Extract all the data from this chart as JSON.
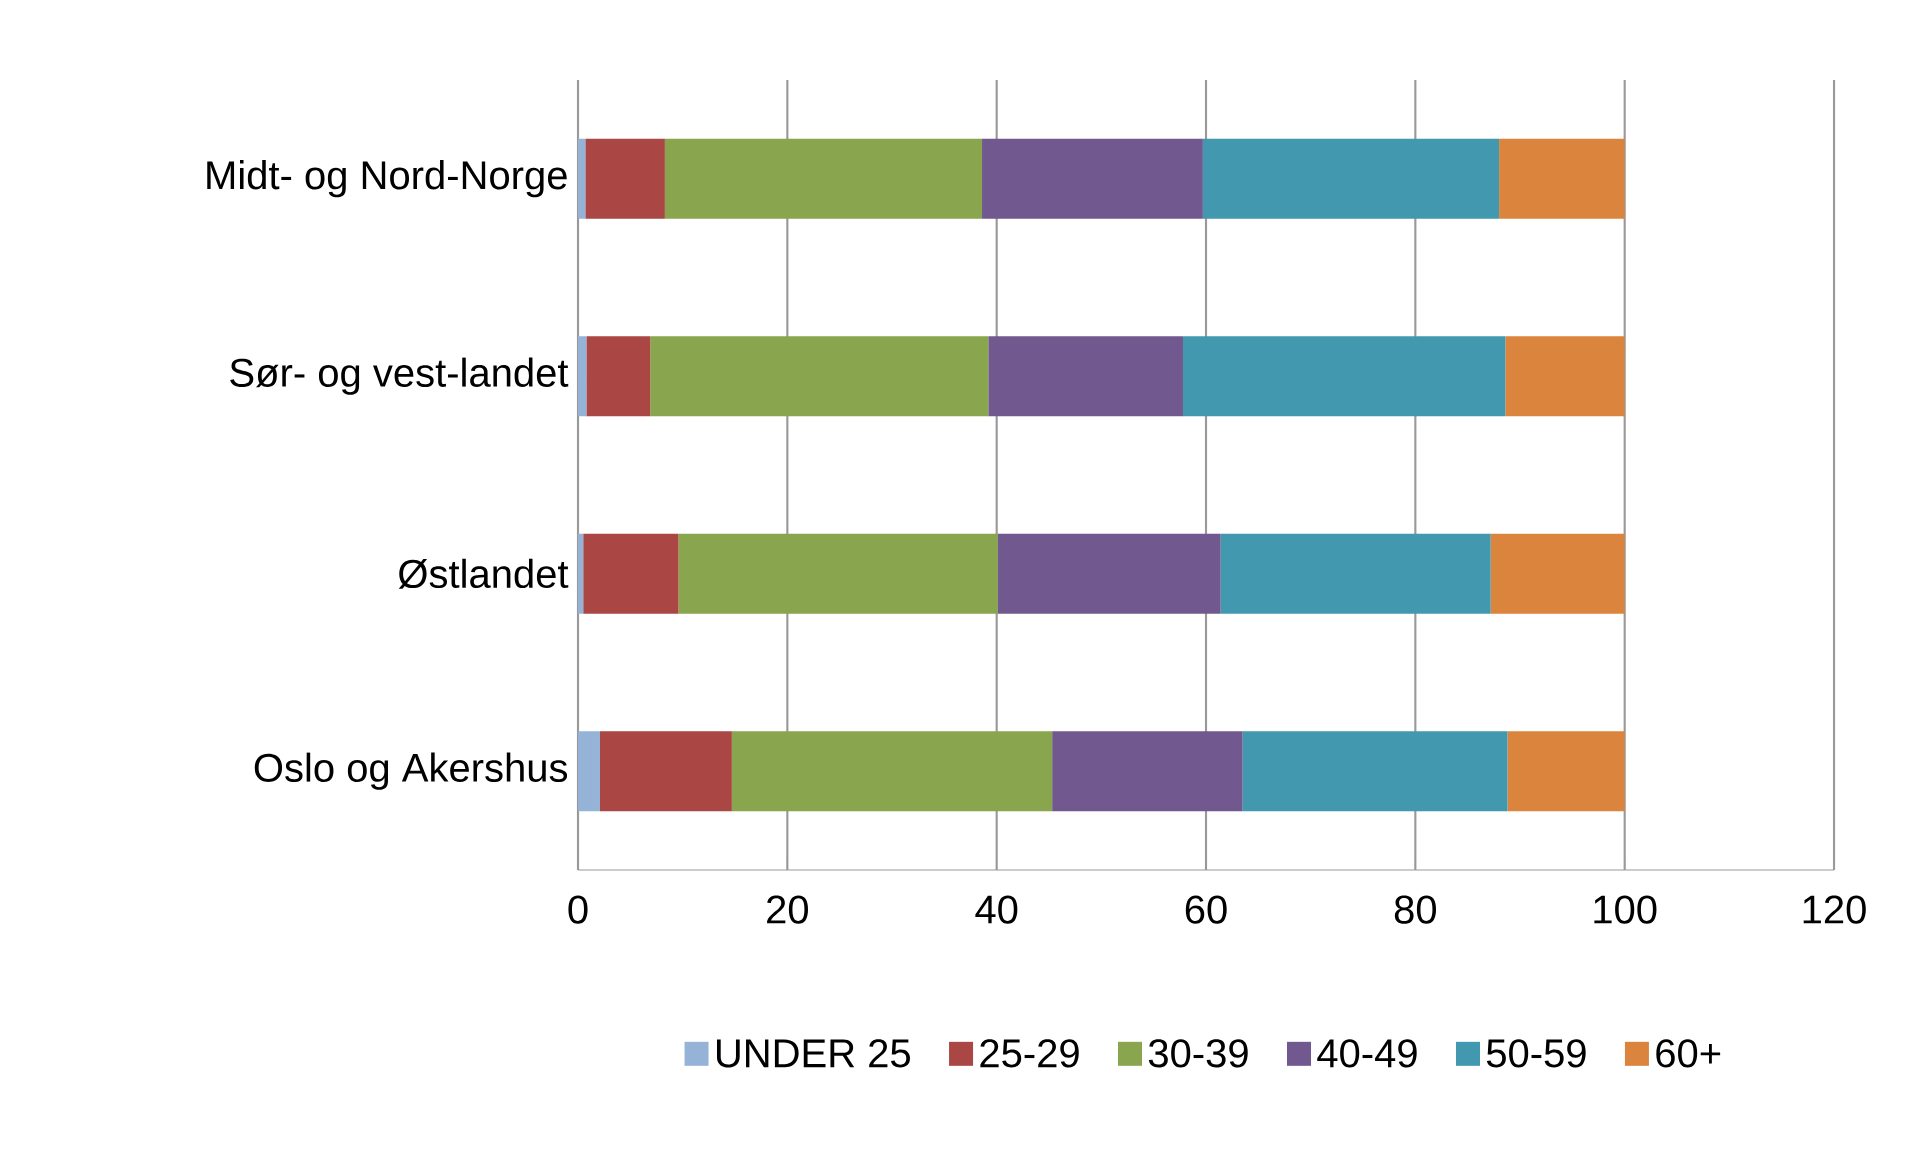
{
  "chart_data": {
    "type": "bar",
    "orientation": "horizontal",
    "stacked": true,
    "categories": [
      "Midt- og Nord-Norge",
      "Sør- og vest-landet",
      "Østlandet",
      "Oslo og Akershus"
    ],
    "series": [
      {
        "name": "UNDER 25",
        "color": "#95b3d7",
        "values": [
          0.7,
          0.8,
          0.5,
          2.1
        ]
      },
      {
        "name": "25-29",
        "color": "#aa4643",
        "values": [
          7.6,
          6.1,
          9.1,
          12.6
        ]
      },
      {
        "name": "30-39",
        "color": "#89a54e",
        "values": [
          30.3,
          32.3,
          30.5,
          30.6
        ]
      },
      {
        "name": "40-49",
        "color": "#71588f",
        "values": [
          21.1,
          18.6,
          21.3,
          18.2
        ]
      },
      {
        "name": "50-59",
        "color": "#4198af",
        "values": [
          28.3,
          30.8,
          25.8,
          25.3
        ]
      },
      {
        "name": "60+",
        "color": "#db843d",
        "values": [
          12.0,
          11.4,
          12.8,
          11.2
        ]
      }
    ],
    "xlim": [
      0,
      120
    ],
    "xticks": [
      0,
      20,
      40,
      60,
      80,
      100,
      120
    ],
    "grid": "x",
    "legend": "bottom"
  }
}
